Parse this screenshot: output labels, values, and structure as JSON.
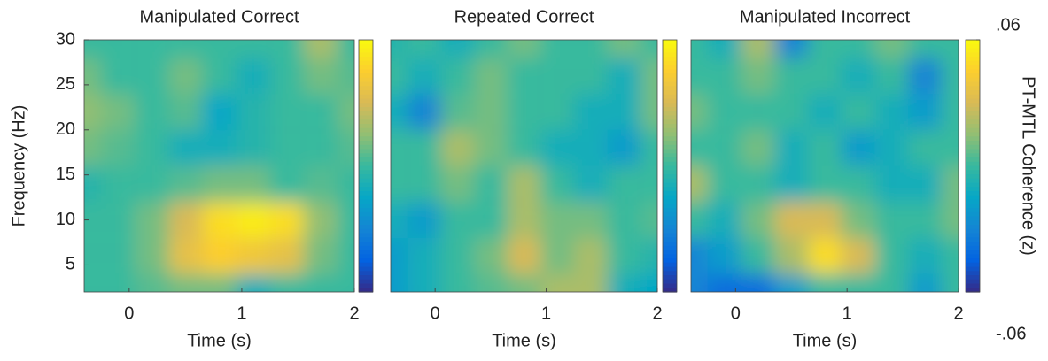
{
  "chart_data": [
    {
      "type": "heatmap",
      "title": "Manipulated Correct",
      "xlabel": "Time (s)",
      "ylabel": "Frequency (Hz)",
      "x": [
        -0.4,
        -0.1,
        0.2,
        0.5,
        0.8,
        1.1,
        1.4,
        1.7,
        2.0
      ],
      "y": [
        2,
        6,
        10,
        14,
        18,
        22,
        26,
        30
      ],
      "z": [
        [
          0,
          0,
          0.005,
          0.01,
          0.01,
          -0.01,
          0,
          0,
          0
        ],
        [
          0,
          0,
          0.01,
          0.035,
          0.045,
          0.04,
          0.035,
          0.01,
          0
        ],
        [
          0,
          0,
          0.01,
          0.03,
          0.05,
          0.055,
          0.05,
          0.015,
          0
        ],
        [
          -0.005,
          0,
          0,
          0.005,
          0.01,
          0.01,
          0,
          0.005,
          0
        ],
        [
          0.01,
          0.005,
          0,
          -0.01,
          -0.01,
          -0.005,
          0,
          0,
          0.005
        ],
        [
          0.015,
          0.01,
          0,
          0.005,
          -0.015,
          -0.005,
          0,
          0,
          0.01
        ],
        [
          0.01,
          0,
          0,
          0.01,
          0,
          -0.01,
          0,
          0.01,
          0.005
        ],
        [
          0,
          0,
          0,
          0,
          0,
          0,
          0,
          0.02,
          0
        ]
      ],
      "xlim": [
        -0.4,
        2
      ],
      "xticks": [
        0,
        1,
        2
      ],
      "ylim": [
        2,
        30
      ],
      "yticks": [
        5,
        10,
        15,
        20,
        25,
        30
      ],
      "clim": [
        -0.06,
        0.06
      ],
      "colormap": [
        "#352a87",
        "#0363e1",
        "#1485d4",
        "#06a7c6",
        "#38b99e",
        "#92bf73",
        "#d9ba56",
        "#fcce2e",
        "#f9fb0e"
      ]
    },
    {
      "type": "heatmap",
      "title": "Repeated  Correct",
      "xlabel": "Time (s)",
      "x": [
        -0.4,
        -0.1,
        0.2,
        0.5,
        0.8,
        1.1,
        1.4,
        1.7,
        2.0
      ],
      "y": [
        2,
        6,
        10,
        14,
        18,
        22,
        26,
        30
      ],
      "z": [
        [
          -0.02,
          -0.01,
          0,
          0.005,
          0.01,
          0.02,
          0.02,
          -0.01,
          -0.015
        ],
        [
          -0.02,
          -0.01,
          0,
          0.01,
          0.03,
          0.01,
          0.02,
          0,
          -0.005
        ],
        [
          -0.01,
          -0.02,
          0,
          0,
          0.02,
          0.01,
          0.01,
          0,
          0.005
        ],
        [
          0,
          0,
          0.01,
          0,
          0.02,
          0,
          -0.01,
          0,
          0
        ],
        [
          0,
          0,
          0.02,
          0.01,
          0,
          -0.01,
          -0.01,
          -0.02,
          0
        ],
        [
          -0.01,
          -0.03,
          0.005,
          0.01,
          0,
          0,
          -0.01,
          -0.01,
          0.01
        ],
        [
          0,
          -0.01,
          0,
          0.01,
          0,
          0,
          0,
          -0.01,
          0.01
        ],
        [
          -0.005,
          0,
          -0.01,
          0,
          0.01,
          0,
          0,
          0.01,
          0
        ]
      ],
      "xlim": [
        -0.4,
        2
      ],
      "xticks": [
        0,
        1,
        2
      ],
      "ylim": [
        2,
        30
      ],
      "clim": [
        -0.06,
        0.06
      ],
      "colormap": [
        "#352a87",
        "#0363e1",
        "#1485d4",
        "#06a7c6",
        "#38b99e",
        "#92bf73",
        "#d9ba56",
        "#fcce2e",
        "#f9fb0e"
      ]
    },
    {
      "type": "heatmap",
      "title": "Manipulated Incorrect",
      "xlabel": "Time (s)",
      "x": [
        -0.4,
        -0.1,
        0.2,
        0.5,
        0.8,
        1.1,
        1.4,
        1.7,
        2.0
      ],
      "y": [
        2,
        6,
        10,
        14,
        18,
        22,
        26,
        30
      ],
      "z": [
        [
          -0.03,
          -0.04,
          -0.04,
          -0.02,
          0,
          0,
          0,
          -0.02,
          0
        ],
        [
          -0.03,
          -0.02,
          0,
          0.02,
          0.05,
          0.03,
          0,
          -0.01,
          0
        ],
        [
          0,
          -0.01,
          0.01,
          0.03,
          0.03,
          0.01,
          0,
          0,
          0.01
        ],
        [
          0.02,
          0,
          0,
          -0.01,
          0,
          0,
          -0.01,
          -0.01,
          0.01
        ],
        [
          0,
          0,
          0.01,
          -0.01,
          0,
          -0.02,
          -0.01,
          0,
          0
        ],
        [
          0.01,
          0,
          0,
          0,
          -0.01,
          0,
          -0.01,
          -0.02,
          0
        ],
        [
          0,
          0,
          0.01,
          0,
          0,
          -0.01,
          0,
          -0.03,
          0
        ],
        [
          0,
          -0.01,
          0.02,
          -0.03,
          0,
          0,
          0.01,
          0,
          0
        ]
      ],
      "xlim": [
        -0.4,
        2
      ],
      "xticks": [
        0,
        1,
        2
      ],
      "ylim": [
        2,
        30
      ],
      "clim": [
        -0.06,
        0.06
      ],
      "colorbar_ticks": [
        {
          "value": 0.06,
          "label": ".06"
        },
        {
          "value": -0.06,
          "label": "-.06"
        }
      ],
      "colorbar_label": "PT-MTL Coherence (z)",
      "colormap": [
        "#352a87",
        "#0363e1",
        "#1485d4",
        "#06a7c6",
        "#38b99e",
        "#92bf73",
        "#d9ba56",
        "#fcce2e",
        "#f9fb0e"
      ]
    }
  ]
}
